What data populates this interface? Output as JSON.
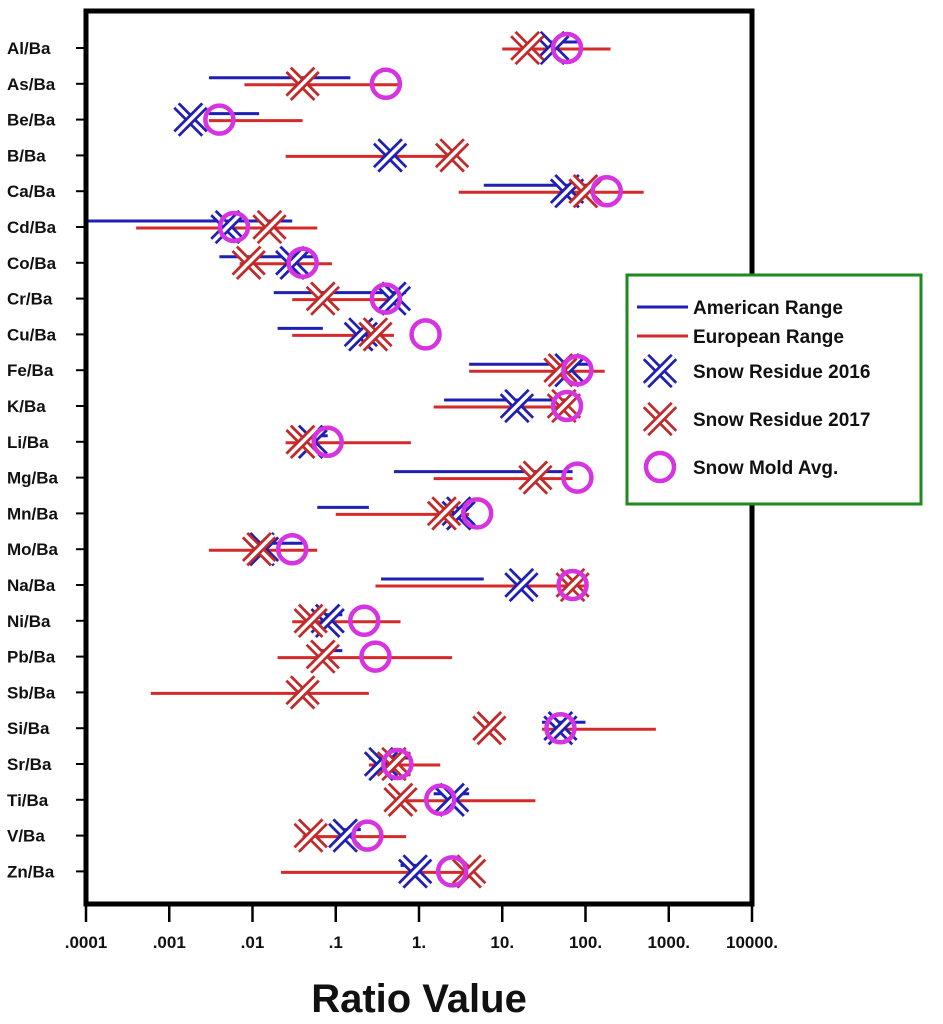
{
  "chart_data": {
    "type": "scatter",
    "xlabel": "Ratio Value",
    "x_scale": "log",
    "xlim": [
      0.0001,
      10000
    ],
    "x_ticks": [
      {
        "value": 0.0001,
        "label": ".0001"
      },
      {
        "value": 0.001,
        "label": ".001"
      },
      {
        "value": 0.01,
        "label": ".01"
      },
      {
        "value": 0.1,
        "label": ".1"
      },
      {
        "value": 1,
        "label": "1."
      },
      {
        "value": 10,
        "label": "10."
      },
      {
        "value": 100,
        "label": "100."
      },
      {
        "value": 1000,
        "label": "1000."
      },
      {
        "value": 10000,
        "label": "10000."
      }
    ],
    "categories": [
      "Al/Ba",
      "As/Ba",
      "Be/Ba",
      "B/Ba",
      "Ca/Ba",
      "Cd/Ba",
      "Co/Ba",
      "Cr/Ba",
      "Cu/Ba",
      "Fe/Ba",
      "K/Ba",
      "Li/Ba",
      "Mg/Ba",
      "Mn/Ba",
      "Mo/Ba",
      "Na/Ba",
      "Ni/Ba",
      "Pb/Ba",
      "Sb/Ba",
      "Si/Ba",
      "Sr/Ba",
      "Ti/Ba",
      "V/Ba",
      "Zn/Ba"
    ],
    "legend": {
      "position": "right",
      "entries": [
        {
          "label": "American Range",
          "marker": "line",
          "color": "#1f1fb4"
        },
        {
          "label": "European Range",
          "marker": "line",
          "color": "#d42a2a"
        },
        {
          "label": "Snow Residue 2016",
          "marker": "x",
          "color": "#1f1fb4"
        },
        {
          "label": "Snow Residue 2017",
          "marker": "x",
          "color": "#c22a2a"
        },
        {
          "label": "Snow Mold Avg.",
          "marker": "circle",
          "color": "#d634e0"
        }
      ]
    },
    "series": [
      {
        "name": "American Range",
        "kind": "range",
        "values": [
          [
            30,
            80
          ],
          [
            0.003,
            0.15
          ],
          [
            0.003,
            0.012
          ],
          null,
          [
            6,
            110
          ],
          [
            0.0001,
            0.03
          ],
          [
            0.004,
            0.06
          ],
          [
            0.018,
            0.7
          ],
          [
            0.02,
            0.07
          ],
          [
            4,
            120
          ],
          [
            2,
            60
          ],
          [
            0.03,
            0.08
          ],
          [
            0.5,
            70
          ],
          [
            0.06,
            0.25
          ],
          [
            0.012,
            0.04
          ],
          [
            0.35,
            6
          ],
          [
            0.06,
            0.12
          ],
          [
            0.06,
            0.12
          ],
          null,
          [
            30,
            100
          ],
          [
            0.25,
            0.8
          ],
          [
            1.5,
            4
          ],
          [
            0.1,
            0.2
          ],
          [
            0.6,
            1.2
          ]
        ]
      },
      {
        "name": "European Range",
        "kind": "range",
        "values": [
          [
            10,
            200
          ],
          [
            0.008,
            0.6
          ],
          [
            0.003,
            0.04
          ],
          [
            0.025,
            3
          ],
          [
            3,
            500
          ],
          [
            0.0004,
            0.06
          ],
          [
            0.007,
            0.09
          ],
          [
            0.03,
            0.6
          ],
          [
            0.03,
            0.5
          ],
          [
            4,
            170
          ],
          [
            1.5,
            60
          ],
          [
            0.025,
            0.8
          ],
          [
            1.5,
            70
          ],
          [
            0.1,
            4
          ],
          [
            0.003,
            0.06
          ],
          [
            0.3,
            100
          ],
          [
            0.03,
            0.6
          ],
          [
            0.02,
            2.5
          ],
          [
            0.0006,
            0.25
          ],
          [
            30,
            700
          ],
          [
            0.25,
            1.8
          ],
          [
            0.5,
            25
          ],
          [
            0.04,
            0.7
          ],
          [
            0.022,
            4
          ]
        ]
      },
      {
        "name": "Snow Residue 2016",
        "kind": "x",
        "values": [
          40,
          null,
          0.0018,
          0.45,
          60,
          0.005,
          0.03,
          0.5,
          0.2,
          60,
          15,
          0.05,
          null,
          3,
          0.013,
          17,
          0.08,
          null,
          null,
          50,
          0.35,
          2.5,
          0.13,
          0.9
        ]
      },
      {
        "name": "Snow Residue 2017",
        "kind": "x",
        "values": [
          20,
          0.04,
          null,
          2.5,
          100,
          0.016,
          0.009,
          0.07,
          0.3,
          50,
          55,
          0.04,
          25,
          2,
          0.012,
          70,
          0.05,
          0.07,
          0.04,
          7,
          0.5,
          0.6,
          0.05,
          4
        ]
      },
      {
        "name": "Snow Mold Avg.",
        "kind": "circle",
        "values": [
          60,
          0.4,
          0.004,
          null,
          180,
          0.006,
          0.04,
          0.4,
          1.2,
          80,
          60,
          0.08,
          80,
          5,
          0.03,
          70,
          0.22,
          0.3,
          null,
          50,
          0.55,
          1.8,
          0.24,
          2.5
        ]
      }
    ]
  },
  "colors": {
    "american": "#1f1fb4",
    "european": "#d42a2a",
    "x2016": "#1f1fb4",
    "x2017": "#c22a2a",
    "mold": "#d634e0",
    "legend_border": "#1f8a1f"
  }
}
